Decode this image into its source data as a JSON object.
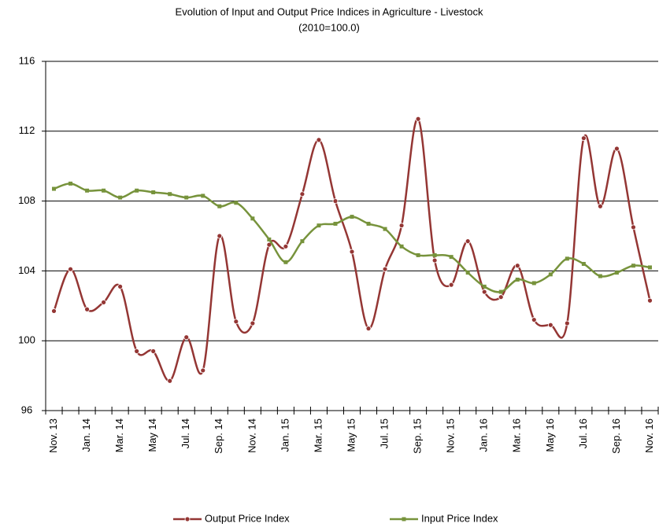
{
  "chart_data": {
    "type": "line",
    "title": "Evolution of Input and Output Price Indices in Agriculture - Livestock",
    "subtitle": "(2010=100.0)",
    "categories": [
      "Nov. 13",
      null,
      "Jan. 14",
      null,
      "Mar. 14",
      null,
      "May 14",
      null,
      "Jul. 14",
      null,
      "Sep. 14",
      null,
      "Nov. 14",
      null,
      "Jan. 15",
      null,
      "Mar. 15",
      null,
      "May 15",
      null,
      "Jul. 15",
      null,
      "Sep. 15",
      null,
      "Nov. 15",
      null,
      "Jan. 16",
      null,
      "Mar. 16",
      null,
      "May 16",
      null,
      "Jul. 16",
      null,
      "Sep. 16",
      null,
      "Nov. 16"
    ],
    "series": [
      {
        "name": "Output Price Index",
        "color": "#943634",
        "marker": "circle",
        "values": [
          101.7,
          104.1,
          101.8,
          102.2,
          103.1,
          99.4,
          99.4,
          97.7,
          100.2,
          98.3,
          106.0,
          101.1,
          101.0,
          105.5,
          105.4,
          108.4,
          111.5,
          108.0,
          105.1,
          100.7,
          104.1,
          106.6,
          112.7,
          104.6,
          103.2,
          105.7,
          102.8,
          102.5,
          104.3,
          101.2,
          100.9,
          101.0,
          111.6,
          107.7,
          111.0,
          106.5,
          102.3
        ]
      },
      {
        "name": "Input Price Index",
        "color": "#77933c",
        "marker": "square",
        "values": [
          108.7,
          109.0,
          108.6,
          108.6,
          108.2,
          108.6,
          108.5,
          108.4,
          108.2,
          108.3,
          107.7,
          107.9,
          107.0,
          105.8,
          104.5,
          105.7,
          106.6,
          106.7,
          107.1,
          106.7,
          106.4,
          105.4,
          104.9,
          104.9,
          104.8,
          103.9,
          103.1,
          102.8,
          103.5,
          103.3,
          103.8,
          104.7,
          104.4,
          103.7,
          103.9,
          104.3,
          104.2
        ]
      }
    ],
    "ylim": [
      96,
      116
    ],
    "yticks": [
      96,
      100,
      104,
      108,
      112,
      116
    ],
    "grid": true,
    "legend": "bottom"
  }
}
